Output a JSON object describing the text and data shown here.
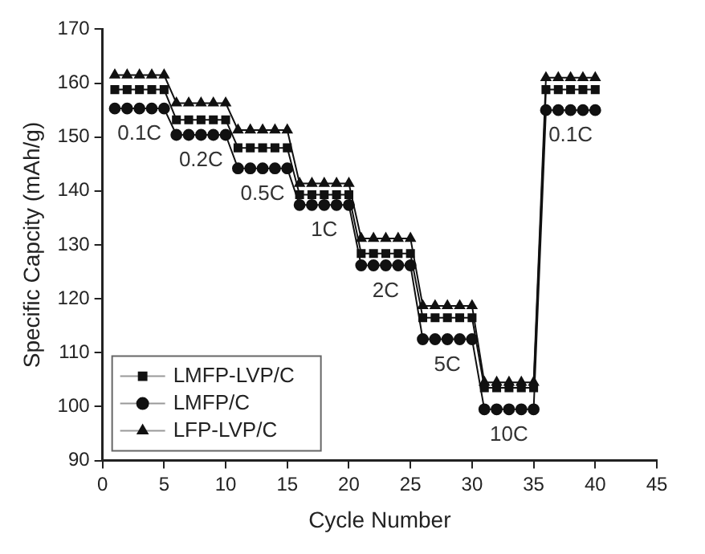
{
  "chart_data": {
    "type": "line",
    "xlabel": "Cycle Number",
    "ylabel": "Specific Capcity (mAh/g)",
    "x": [
      1,
      2,
      3,
      4,
      5,
      6,
      7,
      8,
      9,
      10,
      11,
      12,
      13,
      14,
      15,
      16,
      17,
      18,
      19,
      20,
      21,
      22,
      23,
      24,
      25,
      26,
      27,
      28,
      29,
      30,
      31,
      32,
      33,
      34,
      35,
      36,
      37,
      38,
      39,
      40
    ],
    "series": [
      {
        "name": "LMFP-LVP/C",
        "color": "#111111",
        "marker": "square",
        "values": [
          158.8,
          158.8,
          158.8,
          158.8,
          158.8,
          153.2,
          153.2,
          153.2,
          153.2,
          153.2,
          148,
          148,
          148,
          148,
          148,
          139.3,
          139.3,
          139.3,
          139.3,
          139.3,
          128.4,
          128.4,
          128.4,
          128.4,
          128.4,
          116.5,
          116.5,
          116.5,
          116.5,
          116.5,
          103.5,
          103.5,
          103.5,
          103.5,
          103.5,
          158.8,
          158.8,
          158.8,
          158.8,
          158.8
        ]
      },
      {
        "name": "LMFP/C",
        "color": "#111111",
        "marker": "circle",
        "values": [
          155.3,
          155.3,
          155.3,
          155.3,
          155.3,
          150.4,
          150.4,
          150.4,
          150.4,
          150.4,
          144.2,
          144.2,
          144.2,
          144.2,
          144.2,
          137.4,
          137.4,
          137.4,
          137.4,
          137.4,
          126.2,
          126.2,
          126.2,
          126.2,
          126.2,
          112.5,
          112.5,
          112.5,
          112.5,
          112.5,
          99.5,
          99.5,
          99.5,
          99.5,
          99.5,
          155,
          155,
          155,
          155,
          155
        ]
      },
      {
        "name": "LFP-LVP/C",
        "color": "#111111",
        "marker": "triangle",
        "values": [
          161.5,
          161.5,
          161.5,
          161.5,
          161.5,
          156.3,
          156.3,
          156.3,
          156.3,
          156.3,
          151.3,
          151.3,
          151.3,
          151.3,
          151.3,
          141.4,
          141.4,
          141.4,
          141.4,
          141.4,
          131.2,
          131.2,
          131.2,
          131.2,
          131.2,
          118.7,
          118.7,
          118.7,
          118.7,
          118.7,
          104.5,
          104.5,
          104.5,
          104.5,
          104.5,
          161,
          161,
          161,
          161,
          161
        ]
      }
    ],
    "xlim": [
      0,
      45
    ],
    "xticks": [
      0,
      5,
      10,
      15,
      20,
      25,
      30,
      35,
      40,
      45
    ],
    "ylim": [
      90,
      170
    ],
    "yticks": [
      90,
      100,
      110,
      120,
      130,
      140,
      150,
      160,
      170
    ],
    "grid": false,
    "legend": "bottom left",
    "line_style": "solid",
    "annotations": [
      "0.1C",
      "0.2C",
      "0.5C",
      "1C",
      "2C",
      "5C",
      "10C",
      "0.1C"
    ]
  }
}
